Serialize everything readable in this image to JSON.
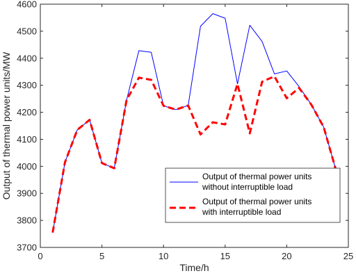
{
  "chart_data": {
    "type": "line",
    "xlabel": "Time/h",
    "ylabel": "Output of thermal power units/MW",
    "xlim": [
      0,
      25
    ],
    "ylim": [
      3700,
      4600
    ],
    "xticks": [
      "0",
      "5",
      "10",
      "15",
      "20",
      "25"
    ],
    "yticks": [
      "3700",
      "3800",
      "3900",
      "4000",
      "4100",
      "4200",
      "4300",
      "4400",
      "4500",
      "4600"
    ],
    "grid": false,
    "legend_position": "lower-right",
    "x": [
      1,
      2,
      3,
      4,
      5,
      6,
      7,
      8,
      9,
      10,
      11,
      12,
      13,
      14,
      15,
      16,
      17,
      18,
      19,
      20,
      21,
      22,
      23,
      24
    ],
    "series": [
      {
        "name": "Output of thermal power units without interruptible load",
        "name_lines": [
          "Output of thermal power units",
          "without interruptible load"
        ],
        "color": "#0000ff",
        "style": "solid",
        "values": [
          3755,
          4015,
          4135,
          4172,
          4012,
          3993,
          4245,
          4428,
          4422,
          4224,
          4210,
          4225,
          4518,
          4565,
          4548,
          4305,
          4522,
          4462,
          4342,
          4353,
          4295,
          4228,
          4145,
          3985
        ]
      },
      {
        "name": "Output of thermal power units with interruptible load",
        "name_lines": [
          "Output of thermal power units",
          "with interruptible load"
        ],
        "color": "#ff0000",
        "style": "dashed",
        "values": [
          3755,
          4015,
          4135,
          4172,
          4012,
          3993,
          4245,
          4328,
          4320,
          4224,
          4210,
          4225,
          4118,
          4163,
          4155,
          4305,
          4122,
          4313,
          4333,
          4252,
          4290,
          4228,
          4145,
          3985
        ]
      }
    ]
  }
}
